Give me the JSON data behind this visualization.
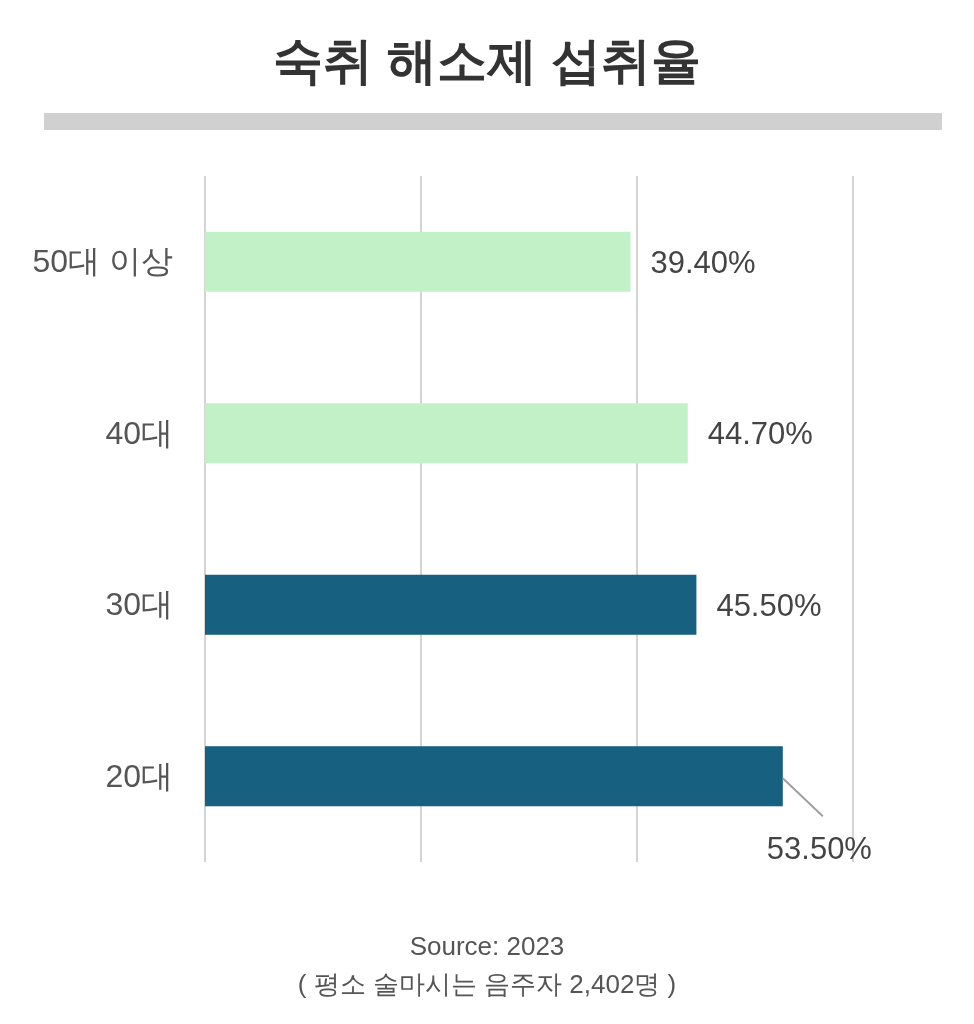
{
  "chart_data": {
    "type": "bar",
    "orientation": "horizontal",
    "title": "숙취 해소제 섭취율",
    "categories": [
      "50대 이상",
      "40대",
      "30대",
      "20대"
    ],
    "values": [
      39.4,
      44.7,
      45.5,
      53.5
    ],
    "colors": [
      "#c2f1c8",
      "#c2f1c8",
      "#17607f",
      "#17607f"
    ],
    "value_labels": [
      "39.40%",
      "44.70%",
      "45.50%",
      "53.50%"
    ],
    "xlim": [
      0,
      60
    ],
    "xticks": [
      {
        "value": 0,
        "label": null
      },
      {
        "value": 20,
        "label": null
      },
      {
        "value": 40,
        "label": null
      },
      {
        "value": 60,
        "label": null
      }
    ],
    "grid": "x",
    "tick_labels": "y",
    "annotations": [
      "Source: 2023",
      "( 평소 술마시는 음주자 2,402명 )"
    ]
  }
}
